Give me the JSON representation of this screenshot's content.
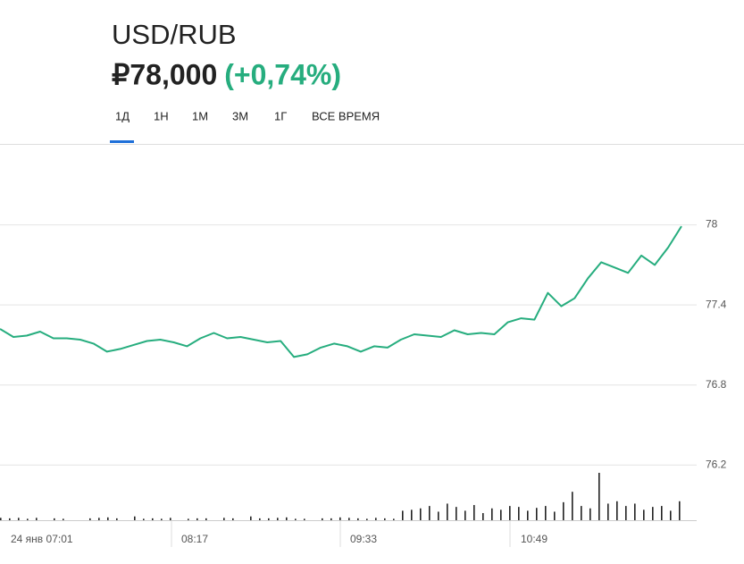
{
  "header": {
    "pair": "USD/RUB",
    "price": "₽78,000",
    "change": "(+0,74%)"
  },
  "tabs": [
    "1Д",
    "1Н",
    "1М",
    "3М",
    "1Г",
    "ВСЕ ВРЕМЯ"
  ],
  "chart_data": {
    "type": "line",
    "series": [
      {
        "name": "USD/RUB",
        "color": "#26ad7e",
        "values": [
          77.22,
          77.16,
          77.17,
          77.2,
          77.15,
          77.15,
          77.14,
          77.11,
          77.05,
          77.07,
          77.1,
          77.13,
          77.14,
          77.12,
          77.09,
          77.15,
          77.19,
          77.15,
          77.16,
          77.14,
          77.12,
          77.13,
          77.01,
          77.03,
          77.08,
          77.11,
          77.09,
          77.05,
          77.09,
          77.08,
          77.14,
          77.18,
          77.17,
          77.16,
          77.21,
          77.18,
          77.19,
          77.18,
          77.27,
          77.3,
          77.29,
          77.49,
          77.39,
          77.45,
          77.6,
          77.72,
          77.68,
          77.64,
          77.77,
          77.7,
          77.83,
          77.99
        ]
      },
      {
        "name": "Volume",
        "color": "#222222",
        "values": [
          5,
          4,
          5,
          3,
          5,
          0,
          4,
          3,
          0,
          0,
          4,
          5,
          6,
          4,
          0,
          8,
          3,
          4,
          3,
          5,
          0,
          3,
          4,
          4,
          0,
          5,
          4,
          0,
          8,
          4,
          4,
          5,
          6,
          3,
          3,
          0,
          4,
          4,
          6,
          5,
          4,
          3,
          5,
          4,
          3,
          20,
          22,
          25,
          30,
          18,
          35,
          28,
          20,
          32,
          15,
          25,
          22,
          30,
          28,
          20,
          26,
          30,
          18,
          38,
          60,
          30,
          25,
          100,
          35,
          40,
          30,
          35,
          22,
          28,
          30,
          20,
          40
        ]
      }
    ],
    "x_labels": [
      "24 янв 07:01",
      "08:17",
      "09:33",
      "10:49"
    ],
    "ylim": [
      75.78,
      78.6
    ],
    "yticks": [
      76.2,
      76.8,
      77.4,
      78
    ],
    "grid": true
  }
}
